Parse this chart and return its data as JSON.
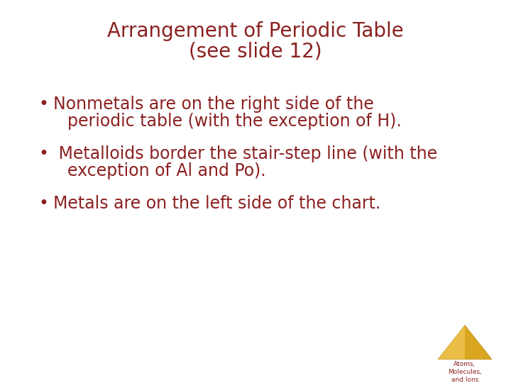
{
  "title_line1": "Arrangement of Periodic Table",
  "title_line2": "(see slide 12)",
  "title_color": "#8B2020",
  "bullet_color": "#8B2020",
  "background_color": "#FFFFFF",
  "bullet1_line1": "Nonmetals are on the right side of the",
  "bullet1_line2": "periodic table (with the exception of H).",
  "bullet2_line1": " Metalloids border the stair-step line (with the",
  "bullet2_line2": "exception of Al and Po).",
  "bullet3_line1": "Metals are on the left side of the chart.",
  "bullet_symbol": "•",
  "font_size_title": 20,
  "font_size_bullet": 17,
  "logo_text_line1": "Atoms,",
  "logo_text_line2": "Molecules,",
  "logo_text_line3": "and Ions",
  "logo_text_color": "#8B2020",
  "logo_triangle_color1": "#DAA520",
  "logo_triangle_color2": "#B8860B",
  "logo_triangle_highlight": "#F5D060"
}
